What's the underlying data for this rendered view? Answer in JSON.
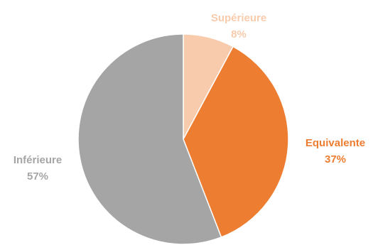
{
  "chart_data": {
    "type": "pie",
    "title": "",
    "start_angle_deg": 0,
    "direction": "clockwise",
    "slices": [
      {
        "label": "Supérieure",
        "value": 8,
        "value_label": "8%",
        "color": "#F8CBAD"
      },
      {
        "label": "Equivalente",
        "value": 37,
        "value_label": "37%",
        "color": "#ED7D31"
      },
      {
        "label": "Inférieure",
        "value": 57,
        "value_label": "57%",
        "color": "#A5A5A5"
      }
    ],
    "legend": "none"
  }
}
